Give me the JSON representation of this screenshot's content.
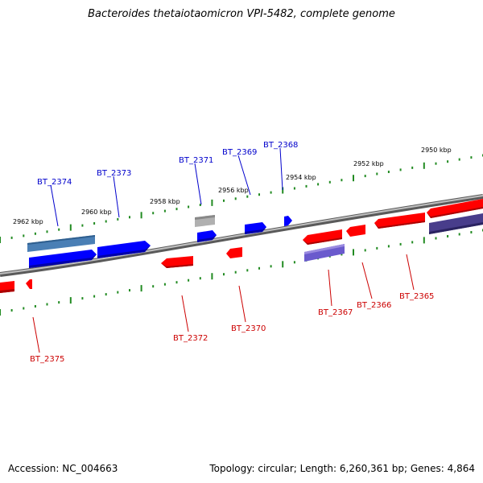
{
  "title": "Bacteroides thetaiotaomicron VPI-5482, complete genome",
  "accession_text": "Accession: NC_004663",
  "summary_text": "Topology: circular; Length: 6,260,361 bp; Genes: 4,864",
  "colors": {
    "red": "#ff0000",
    "blue": "#0000ff",
    "grey_gene": "#b0b0b0",
    "steel_blue": "#4a7fb5",
    "purple": "#6a5acd",
    "dark_slate": "#483d8b",
    "label_blue": "#0000cc",
    "label_red": "#cc0000",
    "tick_green": "#228b22",
    "backbone": "#888888"
  },
  "kbp_labels": [
    {
      "id": "2962",
      "text": "2962 kbp"
    },
    {
      "id": "2960",
      "text": "2960 kbp"
    },
    {
      "id": "2958",
      "text": "2958 kbp"
    },
    {
      "id": "2956",
      "text": "2956 kbp"
    },
    {
      "id": "2954",
      "text": "2954 kbp"
    },
    {
      "id": "2952",
      "text": "2952 kbp"
    },
    {
      "id": "2950",
      "text": "2950 kbp"
    }
  ],
  "genes": [
    {
      "name": "BT_2374",
      "strand": "upper",
      "color": "blue"
    },
    {
      "name": "BT_2373",
      "strand": "upper",
      "color": "blue"
    },
    {
      "name": "BT_2371",
      "strand": "upper",
      "color": "blue"
    },
    {
      "name": "BT_2369",
      "strand": "upper",
      "color": "blue"
    },
    {
      "name": "BT_2368",
      "strand": "upper",
      "color": "blue"
    },
    {
      "name": "BT_2375",
      "strand": "lower",
      "color": "red"
    },
    {
      "name": "BT_2372",
      "strand": "lower",
      "color": "red"
    },
    {
      "name": "BT_2370",
      "strand": "lower",
      "color": "red"
    },
    {
      "name": "BT_2367",
      "strand": "lower",
      "color": "red"
    },
    {
      "name": "BT_2366",
      "strand": "lower",
      "color": "red"
    },
    {
      "name": "BT_2365",
      "strand": "lower",
      "color": "red"
    }
  ]
}
